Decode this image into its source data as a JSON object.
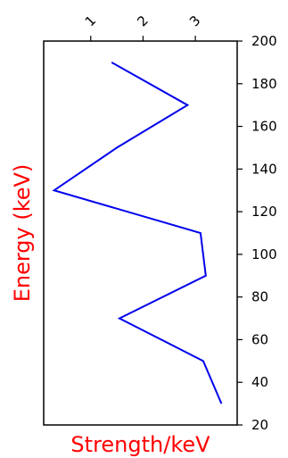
{
  "chart_data": {
    "type": "line",
    "orientation": "vertical",
    "xlabel": "Strength/keV",
    "ylabel": "Energy (keV)",
    "xlabel_color": "#ff0000",
    "ylabel_color": "#ff0000",
    "x_axis_position": "top",
    "y_axis_position": "right",
    "x_tick_rotation_deg": -45,
    "xlim": [
      0.1,
      3.8
    ],
    "ylim": [
      20,
      200
    ],
    "x_ticks": [
      1,
      2,
      3
    ],
    "x_tick_labels": [
      "1",
      "2",
      "3"
    ],
    "y_ticks": [
      20,
      40,
      60,
      80,
      100,
      120,
      140,
      160,
      180,
      200
    ],
    "y_tick_labels": [
      "20",
      "40",
      "60",
      "80",
      "100",
      "120",
      "140",
      "160",
      "180",
      "200"
    ],
    "grid": false,
    "series": [
      {
        "color": "#0000ee",
        "points": [
          {
            "x": 1.4,
            "y": 190
          },
          {
            "x": 2.85,
            "y": 170
          },
          {
            "x": 1.5,
            "y": 150
          },
          {
            "x": 0.3,
            "y": 130
          },
          {
            "x": 3.1,
            "y": 110
          },
          {
            "x": 3.2,
            "y": 90
          },
          {
            "x": 1.55,
            "y": 70
          },
          {
            "x": 3.15,
            "y": 50
          },
          {
            "x": 3.5,
            "y": 30
          }
        ]
      }
    ]
  }
}
